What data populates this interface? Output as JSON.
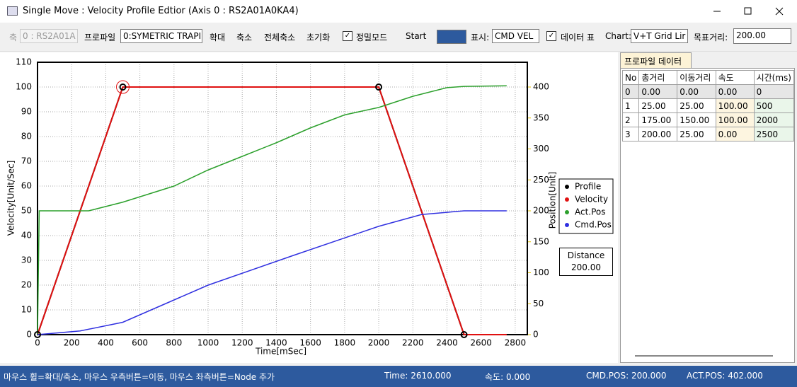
{
  "window": {
    "title": "Single Move : Velocity Profile Edtior (Axis 0 : RS2A01A0KA4)"
  },
  "toolbar": {
    "axis_label": "축",
    "axis_combo": "0 : RS2A01A",
    "profile_label": "프로파일",
    "profile_combo": "0:SYMETRIC TRAPI",
    "buttons": [
      "확대",
      "축소",
      "전체축소",
      "초기화"
    ],
    "precise_mode": "정밀모드",
    "start": "Start",
    "display_label": "표시:",
    "display_combo": "CMD VEL",
    "data_table": "데이터 표",
    "chart_label": "Chart:",
    "chart_combo": "V+T Grid Lir",
    "target_label": "목표거리:",
    "target_value": "200.00"
  },
  "chart_data": {
    "type": "line",
    "xlabel": "Time[mSec]",
    "ylabel": "Velocity[Unit/Sec]",
    "y2label": "Position[Unit]",
    "xlim": [
      0,
      2871
    ],
    "xticks": [
      0,
      200,
      400,
      600,
      800,
      1000,
      1200,
      1400,
      1600,
      1800,
      2000,
      2200,
      2400,
      2600,
      2800
    ],
    "ylim": [
      0,
      110
    ],
    "yticks": [
      0,
      10,
      20,
      30,
      40,
      50,
      60,
      70,
      80,
      90,
      100,
      110
    ],
    "y2lim": [
      0,
      440
    ],
    "y2ticks": [
      0,
      50,
      100,
      150,
      200,
      250,
      300,
      350,
      400
    ],
    "grid": true,
    "selected_point": 1,
    "series": [
      {
        "name": "Profile",
        "color": "#000000",
        "markers": true,
        "x": [
          0,
          500,
          2000,
          2500
        ],
        "values": [
          0,
          100,
          100,
          0
        ]
      },
      {
        "name": "Velocity",
        "color": "#e01010",
        "x": [
          0,
          500,
          2000,
          2500,
          2750
        ],
        "values": [
          0,
          100,
          100,
          0,
          0
        ]
      },
      {
        "name": "Act.Pos",
        "color": "#2ca02c",
        "axis": "y2",
        "x": [
          0,
          10,
          300,
          500,
          800,
          1000,
          1200,
          1400,
          1600,
          1800,
          2000,
          2200,
          2400,
          2500,
          2750
        ],
        "values": [
          0,
          200,
          200,
          214,
          240,
          266,
          288,
          310,
          334,
          355,
          367,
          385,
          399,
          401,
          402
        ]
      },
      {
        "name": "Cmd.Pos",
        "color": "#3030e0",
        "axis": "y2",
        "x": [
          0,
          250,
          500,
          1000,
          1500,
          2000,
          2250,
          2500,
          2750
        ],
        "values": [
          0,
          6,
          20,
          80,
          128,
          175,
          194,
          200,
          200
        ]
      }
    ]
  },
  "distance_box": {
    "label": "Distance",
    "value": "200.00"
  },
  "table": {
    "tab": "프로파일 데이터",
    "header": [
      "No",
      "총거리",
      "이동거리",
      "속도",
      "시간(ms)"
    ],
    "rows": [
      [
        "0",
        "0.00",
        "0.00",
        "0.00",
        "0"
      ],
      [
        "1",
        "25.00",
        "25.00",
        "100.00",
        "500"
      ],
      [
        "2",
        "175.00",
        "150.00",
        "100.00",
        "2000"
      ],
      [
        "3",
        "200.00",
        "25.00",
        "0.00",
        "2500"
      ]
    ]
  },
  "status": [
    "마우스 휠=확대/축소, 마우스 우측버튼=이동, 마우스 좌측버튼=Node 추가",
    "Time: 2610.000",
    "속도: 0.000",
    "CMD.POS: 200.000",
    "ACT.POS: 402.000"
  ]
}
